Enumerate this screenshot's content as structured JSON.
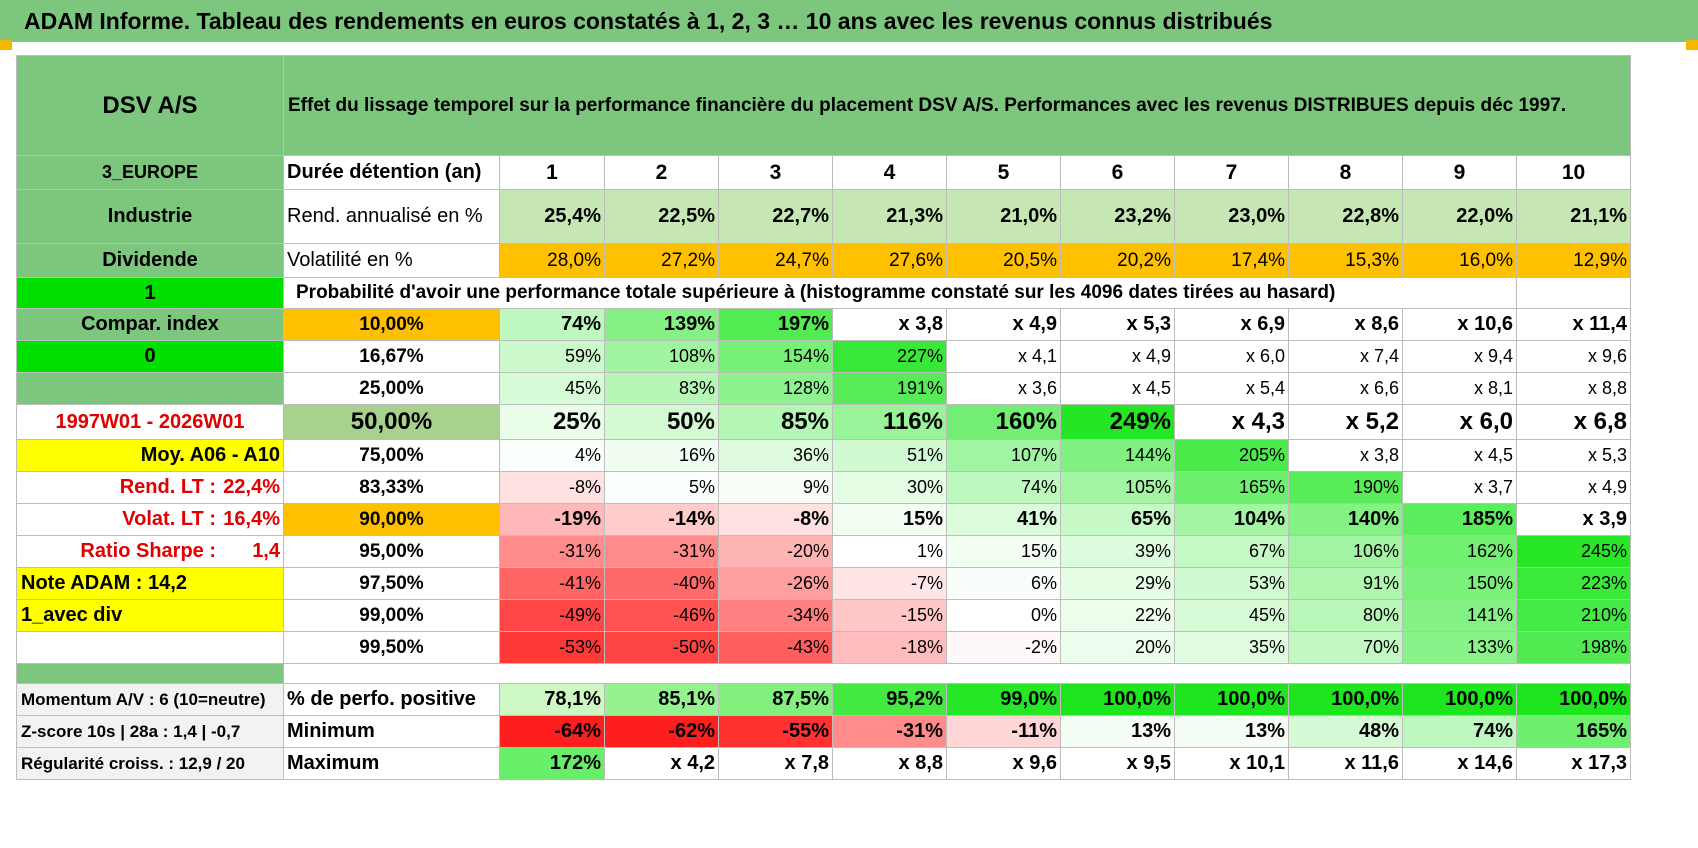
{
  "title": "ADAM Informe. Tableau des rendements en euros constatés à 1, 2, 3 … 10 ans avec les revenus connus distribués",
  "header": {
    "name": "DSV A/S",
    "description": "Effet du lissage temporel sur la performance financière du placement DSV A/S. Performances avec les revenus DISTRIBUES depuis déc 1997."
  },
  "durations_label": "Durée détention (an)",
  "durations": [
    "1",
    "2",
    "3",
    "4",
    "5",
    "6",
    "7",
    "8",
    "9",
    "10"
  ],
  "stats": [
    {
      "label": "Rend. annualisé en %",
      "values": [
        "25,4%",
        "22,5%",
        "22,7%",
        "21,3%",
        "21,0%",
        "23,2%",
        "23,0%",
        "22,8%",
        "22,0%",
        "21,1%"
      ]
    },
    {
      "label": "Volatilité en %",
      "values": [
        "28,0%",
        "27,2%",
        "24,7%",
        "27,6%",
        "20,5%",
        "20,2%",
        "17,4%",
        "15,3%",
        "16,0%",
        "12,9%"
      ]
    }
  ],
  "prob_title": "Probabilité d'avoir une performance totale supérieure à (histogramme constaté sur les 4096 dates tirées au hasard)",
  "left_panel": {
    "region": "3_EUROPE",
    "sector": "Industrie",
    "dividend_label": "Dividende",
    "flag_1": "1",
    "compar_index": "Compar. index",
    "flag_0": "0",
    "period": "1997W01 - 2026W01",
    "moy": "Moy. A06 - A10",
    "rend_lt_label": "Rend. LT :",
    "rend_lt_value": "22,4%",
    "volat_lt_label": "Volat. LT :",
    "volat_lt_value": "16,4%",
    "sharpe_label": "Ratio Sharpe :",
    "sharpe_value": "1,4",
    "note_adam": "Note ADAM : 14,2",
    "avec_div": "1_avec div"
  },
  "quantiles": [
    {
      "q": "10,00%",
      "values": [
        "74%",
        "139%",
        "197%",
        "x 3,8",
        "x 4,9",
        "x 5,3",
        "x 6,9",
        "x 8,6",
        "x 10,6",
        "x 11,4"
      ]
    },
    {
      "q": "16,67%",
      "values": [
        "59%",
        "108%",
        "154%",
        "227%",
        "x 4,1",
        "x 4,9",
        "x 6,0",
        "x 7,4",
        "x 9,4",
        "x 9,6"
      ]
    },
    {
      "q": "25,00%",
      "values": [
        "45%",
        "83%",
        "128%",
        "191%",
        "x 3,6",
        "x 4,5",
        "x 5,4",
        "x 6,6",
        "x 8,1",
        "x 8,8"
      ]
    },
    {
      "q": "50,00%",
      "values": [
        "25%",
        "50%",
        "85%",
        "116%",
        "160%",
        "249%",
        "x 4,3",
        "x 5,2",
        "x 6,0",
        "x 6,8"
      ]
    },
    {
      "q": "75,00%",
      "values": [
        "4%",
        "16%",
        "36%",
        "51%",
        "107%",
        "144%",
        "205%",
        "x 3,8",
        "x 4,5",
        "x 5,3"
      ]
    },
    {
      "q": "83,33%",
      "values": [
        "-8%",
        "5%",
        "9%",
        "30%",
        "74%",
        "105%",
        "165%",
        "190%",
        "x 3,7",
        "x 4,9"
      ]
    },
    {
      "q": "90,00%",
      "values": [
        "-19%",
        "-14%",
        "-8%",
        "15%",
        "41%",
        "65%",
        "104%",
        "140%",
        "185%",
        "x 3,9"
      ]
    },
    {
      "q": "95,00%",
      "values": [
        "-31%",
        "-31%",
        "-20%",
        "1%",
        "15%",
        "39%",
        "67%",
        "106%",
        "162%",
        "245%"
      ]
    },
    {
      "q": "97,50%",
      "values": [
        "-41%",
        "-40%",
        "-26%",
        "-7%",
        "6%",
        "29%",
        "53%",
        "91%",
        "150%",
        "223%"
      ]
    },
    {
      "q": "99,00%",
      "values": [
        "-49%",
        "-46%",
        "-34%",
        "-15%",
        "0%",
        "22%",
        "45%",
        "80%",
        "141%",
        "210%"
      ]
    },
    {
      "q": "99,50%",
      "values": [
        "-53%",
        "-50%",
        "-43%",
        "-18%",
        "-2%",
        "20%",
        "35%",
        "70%",
        "133%",
        "198%"
      ]
    }
  ],
  "summary": [
    {
      "left": "Momentum A/V : 6 (10=neutre)",
      "label": "% de perfo. positive",
      "values": [
        "78,1%",
        "85,1%",
        "87,5%",
        "95,2%",
        "99,0%",
        "100,0%",
        "100,0%",
        "100,0%",
        "100,0%",
        "100,0%"
      ]
    },
    {
      "left": "Z-score 10s | 28a : 1,4 | -0,7",
      "label": "Minimum",
      "values": [
        "-64%",
        "-62%",
        "-55%",
        "-31%",
        "-11%",
        "13%",
        "13%",
        "48%",
        "74%",
        "165%"
      ]
    },
    {
      "left": "Régularité croiss. : 12,9 / 20",
      "label": "Maximum",
      "values": [
        "172%",
        "x 4,2",
        "x 7,8",
        "x 8,8",
        "x 9,6",
        "x 9,5",
        "x 10,1",
        "x 11,6",
        "x 14,6",
        "x 17,3"
      ]
    }
  ],
  "colors": {
    "header_green": "#7dc67d",
    "bright_green": "#00e000",
    "yellow": "#ffff00",
    "orange": "#ffc000",
    "red_text": "#e00000",
    "light_green": "#c6e6b4",
    "olive_green": "#a9d18e"
  }
}
